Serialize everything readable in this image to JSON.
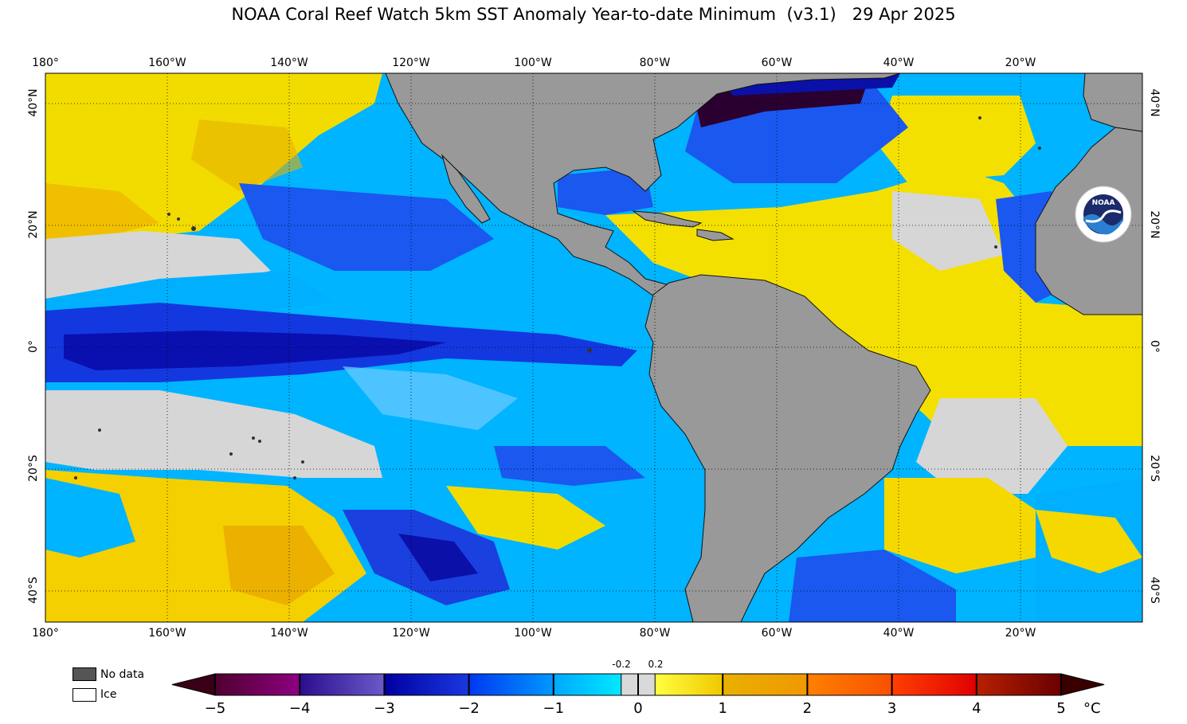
{
  "title": "NOAA Coral Reef Watch 5km SST Anomaly Year-to-date Minimum  (v3.1)   29 Apr 2025",
  "map": {
    "lon_labels": [
      "180°",
      "160°W",
      "140°W",
      "120°W",
      "100°W",
      "80°W",
      "60°W",
      "40°W",
      "20°W"
    ],
    "lat_labels_left": [
      "40°N",
      "20°N",
      "0°",
      "20°S",
      "40°S"
    ],
    "lat_labels_right": [
      "40°N",
      "20°N",
      "0°",
      "20°S",
      "40°S"
    ],
    "land_color": "#999999",
    "gridlines": "dotted"
  },
  "legend": {
    "no_data_label": "No data",
    "ice_label": "Ice",
    "no_data_color": "#555555",
    "ice_color": "#ffffff"
  },
  "colorbar": {
    "ticks": [
      "−5",
      "−4",
      "−3",
      "−2",
      "−1",
      "0",
      "1",
      "2",
      "3",
      "4",
      "5"
    ],
    "small_labels": [
      "-0.2",
      "0.2"
    ],
    "unit": "°C",
    "segments": [
      {
        "from": "#500030",
        "to": "#8e0080"
      },
      {
        "from": "#2c0d8e",
        "to": "#6a5ac8"
      },
      {
        "from": "#0000a0",
        "to": "#1a38e0"
      },
      {
        "from": "#0038f0",
        "to": "#0098ff"
      },
      {
        "from": "#00a8ff",
        "to": "#00e8ff"
      },
      {
        "from": "#ffff40",
        "to": "#f0c800"
      },
      {
        "from": "#e8b000",
        "to": "#f09800"
      },
      {
        "from": "#ff8000",
        "to": "#f85000"
      },
      {
        "from": "#ff4000",
        "to": "#e00000"
      },
      {
        "from": "#b82000",
        "to": "#6a0000"
      }
    ],
    "neutral_color": "#d9d9d9"
  },
  "logo": {
    "text": "NOAA"
  }
}
